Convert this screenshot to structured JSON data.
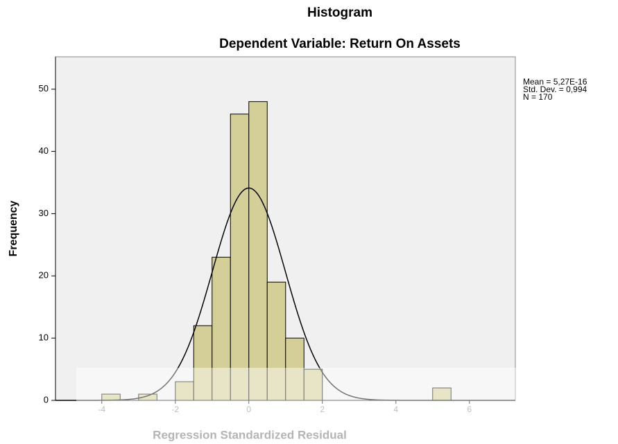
{
  "chart_data": {
    "type": "histogram",
    "title": "Histogram",
    "subtitle": "Dependent Variable: Return On Assets",
    "x_label": "Regression Standardized Residual",
    "y_label": "Frequency",
    "bins": [
      -4,
      -3.5,
      -3,
      -2.5,
      -2,
      -1.5,
      -1,
      -0.5,
      0,
      0.5,
      1,
      1.5,
      2,
      2.5,
      3,
      3.5,
      4,
      4.5,
      5,
      5.5
    ],
    "values": [
      1,
      0,
      1,
      0,
      3,
      12,
      23,
      46,
      48,
      19,
      10,
      5,
      0,
      0,
      0,
      0,
      0,
      0,
      2
    ],
    "color": "#d4cf98",
    "xlim": [
      -5.26,
      7.25
    ],
    "xticks": [
      -4,
      -2,
      0,
      2,
      4,
      6
    ],
    "ylim": [
      0,
      55.2
    ],
    "yticks": [
      0,
      10,
      20,
      30,
      40,
      50
    ],
    "normal_curve": {
      "mean": 5.27e-16,
      "sd": 0.994,
      "n": 170
    },
    "annotations": [
      "Mean = 5,27E-16",
      "Std. Dev. = 0,994",
      "N = 170"
    ]
  }
}
